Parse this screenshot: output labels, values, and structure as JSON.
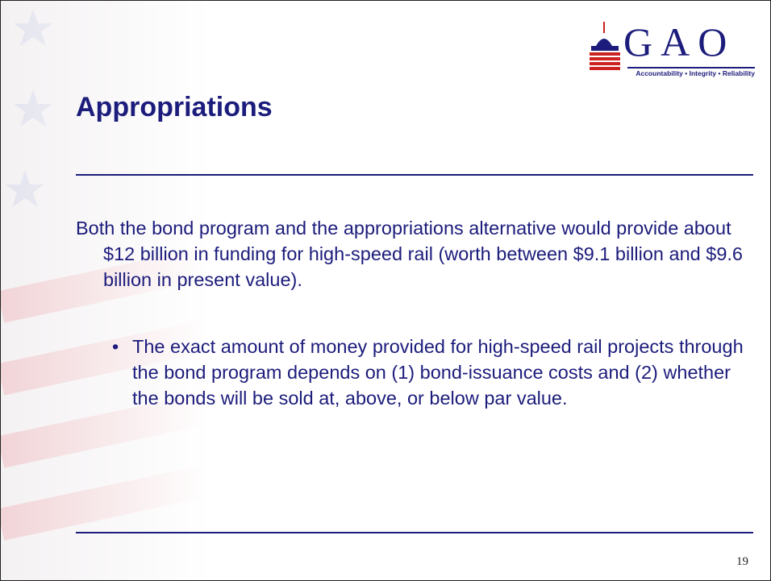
{
  "logo": {
    "name": "GAO",
    "tagline": "Accountability • Integrity • Reliability"
  },
  "title": "Appropriations",
  "body": {
    "paragraph": "Both the bond program and the appropriations alternative would provide about $12 billion in funding for high-speed rail (worth between $9.1 billion and $9.6 billion in present value).",
    "bullets": [
      "The exact amount of money provided for high-speed rail projects through the bond program depends on (1) bond-issuance costs and (2) whether the bonds will be sold at, above, or below par value."
    ]
  },
  "page_number": "19"
}
